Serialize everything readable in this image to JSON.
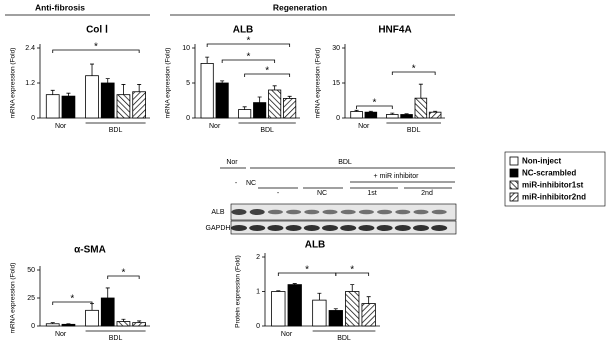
{
  "headers": [
    "Anti-fibrosis",
    "Regeneration"
  ],
  "blot": {
    "groups": [
      "Nor",
      "BDL"
    ],
    "treatments": [
      "-",
      "NC",
      "+ miR inhibitor"
    ],
    "lanes": [
      "-",
      "NC",
      "1st",
      "2nd"
    ],
    "rows": [
      "ALB",
      "GAPDH"
    ]
  },
  "chart_data": [
    {
      "type": "bar",
      "title": "Col Ⅰ",
      "y_label": "mRNA expression (Fold)",
      "categories": [
        "Nor",
        "BDL"
      ],
      "series": [
        {
          "name": "Non-inject",
          "color": "#ffffff",
          "values": [
            0.8,
            1.45
          ],
          "errors": [
            0.15,
            0.4
          ]
        },
        {
          "name": "NC-scrambled",
          "color": "#000000",
          "values": [
            0.75,
            1.2
          ],
          "errors": [
            0.1,
            0.15
          ]
        },
        {
          "name": "miR-inhibitor1st",
          "color": "#ffffff",
          "hatch": "left",
          "values": [
            null,
            0.8
          ],
          "errors": [
            null,
            0.35
          ]
        },
        {
          "name": "miR-inhibitor2nd",
          "color": "#ffffff",
          "hatch": "right",
          "values": [
            null,
            0.9
          ],
          "errors": [
            null,
            0.25
          ]
        }
      ],
      "ylim": [
        0,
        2.4
      ],
      "yticks": [
        0,
        1.2,
        2.4
      ],
      "annotations": [
        "*"
      ]
    },
    {
      "type": "bar",
      "title": "ALB",
      "y_label": "mRNA expression (Fold)",
      "categories": [
        "Nor",
        "BDL"
      ],
      "series": [
        {
          "name": "Non-inject",
          "color": "#ffffff",
          "values": [
            7.8,
            1.2
          ],
          "errors": [
            0.9,
            0.4
          ]
        },
        {
          "name": "NC-scrambled",
          "color": "#000000",
          "values": [
            5.0,
            2.2
          ],
          "errors": [
            0.3,
            0.8
          ]
        },
        {
          "name": "miR-inhibitor1st",
          "color": "#ffffff",
          "hatch": "left",
          "values": [
            null,
            4.0
          ],
          "errors": [
            null,
            0.6
          ]
        },
        {
          "name": "miR-inhibitor2nd",
          "color": "#ffffff",
          "hatch": "right",
          "values": [
            null,
            2.8
          ],
          "errors": [
            null,
            0.3
          ]
        }
      ],
      "ylim": [
        0,
        10
      ],
      "yticks": [
        0,
        5,
        10
      ],
      "annotations": [
        "*",
        "*",
        "*"
      ]
    },
    {
      "type": "bar",
      "title": "HNF4A",
      "y_label": "mRNA expression (Fold)",
      "categories": [
        "Nor",
        "BDL"
      ],
      "series": [
        {
          "name": "Non-inject",
          "color": "#ffffff",
          "values": [
            2.8,
            1.5
          ],
          "errors": [
            0.5,
            0.6
          ]
        },
        {
          "name": "NC-scrambled",
          "color": "#000000",
          "values": [
            2.5,
            1.5
          ],
          "errors": [
            0.4,
            0.3
          ]
        },
        {
          "name": "miR-inhibitor1st",
          "color": "#ffffff",
          "hatch": "left",
          "values": [
            null,
            8.5
          ],
          "errors": [
            null,
            6
          ]
        },
        {
          "name": "miR-inhibitor2nd",
          "color": "#ffffff",
          "hatch": "right",
          "values": [
            null,
            2.5
          ],
          "errors": [
            null,
            0.4
          ]
        }
      ],
      "ylim": [
        0,
        30
      ],
      "yticks": [
        0,
        15,
        30
      ],
      "annotations": [
        "*",
        "*"
      ]
    },
    {
      "type": "bar",
      "title": "α-SMA",
      "y_label": "mRNA expression (Fold)",
      "categories": [
        "Nor",
        "BDL"
      ],
      "series": [
        {
          "name": "Non-inject",
          "color": "#ffffff",
          "values": [
            2,
            14
          ],
          "errors": [
            1,
            6
          ]
        },
        {
          "name": "NC-scrambled",
          "color": "#000000",
          "values": [
            1.5,
            25
          ],
          "errors": [
            0.5,
            9
          ]
        },
        {
          "name": "miR-inhibitor1st",
          "color": "#ffffff",
          "hatch": "left",
          "values": [
            null,
            4
          ],
          "errors": [
            null,
            2
          ]
        },
        {
          "name": "miR-inhibitor2nd",
          "color": "#ffffff",
          "hatch": "right",
          "values": [
            null,
            3
          ],
          "errors": [
            null,
            1.5
          ]
        }
      ],
      "ylim": [
        0,
        50
      ],
      "yticks": [
        0,
        25,
        50
      ],
      "annotations": [
        "*",
        "*"
      ]
    },
    {
      "type": "bar",
      "title": "ALB",
      "y_label": "Protein expression (Fold)",
      "categories": [
        "Nor",
        "BDL"
      ],
      "series": [
        {
          "name": "Non-inject",
          "color": "#ffffff",
          "values": [
            1.0,
            0.75
          ],
          "errors": [
            0.02,
            0.2
          ]
        },
        {
          "name": "NC-scrambled",
          "color": "#000000",
          "values": [
            1.2,
            0.45
          ],
          "errors": [
            0.03,
            0.05
          ]
        },
        {
          "name": "miR-inhibitor1st",
          "color": "#ffffff",
          "hatch": "left",
          "values": [
            null,
            1.0
          ],
          "errors": [
            null,
            0.2
          ]
        },
        {
          "name": "miR-inhibitor2nd",
          "color": "#ffffff",
          "hatch": "right",
          "values": [
            null,
            0.65
          ],
          "errors": [
            null,
            0.2
          ]
        }
      ],
      "ylim": [
        0,
        2
      ],
      "yticks": [
        0,
        1,
        2
      ],
      "annotations": [
        "*",
        "*"
      ]
    }
  ]
}
